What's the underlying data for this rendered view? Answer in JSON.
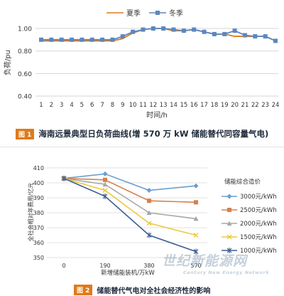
{
  "chart_data": [
    {
      "type": "line",
      "ylabel": "负荷/pu",
      "xlabel": "时间/h",
      "categories": [
        "1",
        "2",
        "3",
        "4",
        "5",
        "6",
        "7",
        "8",
        "9",
        "10",
        "11",
        "12",
        "13",
        "14",
        "15",
        "16",
        "17",
        "18",
        "19",
        "20",
        "21",
        "22",
        "23",
        "24"
      ],
      "ylim": [
        0.4,
        1.0
      ],
      "yticks": [
        "0.40",
        "0.60",
        "0.80",
        "1.00"
      ],
      "grid": "horizontal",
      "legend_position": "top",
      "series": [
        {
          "name": "夏季",
          "color": "#e07a18",
          "marker": "none",
          "values": [
            0.89,
            0.89,
            0.89,
            0.89,
            0.89,
            0.89,
            0.89,
            0.89,
            0.91,
            0.96,
            0.99,
            1.0,
            1.0,
            0.98,
            0.98,
            0.99,
            0.97,
            0.95,
            0.95,
            0.93,
            0.93,
            0.93,
            0.93,
            0.89
          ]
        },
        {
          "name": "冬季",
          "color": "#5b87c0",
          "marker": "square",
          "values": [
            0.9,
            0.9,
            0.9,
            0.9,
            0.9,
            0.9,
            0.9,
            0.9,
            0.93,
            0.97,
            0.99,
            1.0,
            1.0,
            0.99,
            0.98,
            0.99,
            0.97,
            0.95,
            0.95,
            0.98,
            0.94,
            0.93,
            0.93,
            0.89
          ]
        }
      ]
    },
    {
      "type": "line",
      "ylabel": "全社会相对年费用/亿元",
      "xlabel": "新增储能装机/万kW",
      "categories": [
        "0",
        "190",
        "380",
        "570"
      ],
      "ylim": [
        350,
        410
      ],
      "yticks": [
        "350",
        "360",
        "370",
        "380",
        "390",
        "400",
        "410"
      ],
      "grid": "horizontal",
      "legend_title": "储能综合造价",
      "legend_position": "right",
      "series": [
        {
          "name": "3000元/kWh",
          "color": "#6a9fd0",
          "marker": "diamond",
          "values": [
            403,
            406,
            395,
            398
          ]
        },
        {
          "name": "2500元/kWh",
          "color": "#d4814e",
          "marker": "square",
          "values": [
            403,
            402,
            388,
            387
          ]
        },
        {
          "name": "2000元/kWh",
          "color": "#a8a8a8",
          "marker": "triangle",
          "values": [
            403,
            399,
            380,
            376
          ]
        },
        {
          "name": "1500元/kWh",
          "color": "#ecc93e",
          "marker": "x",
          "values": [
            403,
            395,
            373,
            365
          ]
        },
        {
          "name": "1000元/kWh",
          "color": "#3c5e95",
          "marker": "star",
          "values": [
            403,
            391,
            365,
            354
          ]
        }
      ]
    }
  ],
  "captions": {
    "fig1_tag": "图 1",
    "fig1_text": "海南远景典型日负荷曲线(增 570 万 kW 储能替代同容量气电)",
    "fig2_tag": "图 2",
    "fig2_text": "储能替代气电对全社会经济性的影响"
  },
  "watermark": {
    "main": "世纪新能源网",
    "sub": "Century New Energy Network"
  }
}
